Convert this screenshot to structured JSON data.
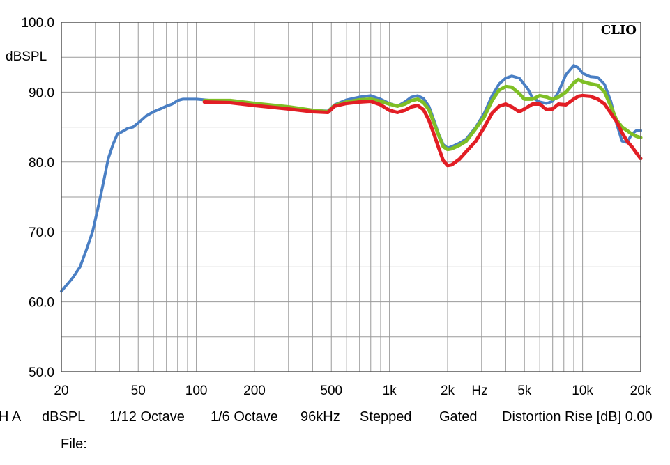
{
  "brand": "CLIO",
  "status_items": [
    "H A",
    "dBSPL",
    "1/12 Octave",
    "1/6 Octave",
    "96kHz",
    "Stepped",
    "Gated",
    "Distortion Rise [dB] 0.00"
  ],
  "file_label": "File:",
  "chart_data": {
    "type": "line",
    "title": "",
    "xlabel": "Hz",
    "ylabel": "dBSPL",
    "x_scale": "log",
    "xlim": [
      20,
      20000
    ],
    "ylim": [
      50,
      100
    ],
    "grid": true,
    "y_ticks": [
      {
        "value": 100,
        "label": "100.0"
      },
      {
        "value": 90,
        "label": "90.0"
      },
      {
        "value": 80,
        "label": "80.0"
      },
      {
        "value": 70,
        "label": "70.0"
      },
      {
        "value": 60,
        "label": "60.0"
      },
      {
        "value": 50,
        "label": "50.0"
      }
    ],
    "x_ticks": [
      {
        "value": 20,
        "label": "20"
      },
      {
        "value": 50,
        "label": "50"
      },
      {
        "value": 100,
        "label": "100"
      },
      {
        "value": 200,
        "label": "200"
      },
      {
        "value": 500,
        "label": "500"
      },
      {
        "value": 1000,
        "label": "1k"
      },
      {
        "value": 2000,
        "label": "2k"
      },
      {
        "value": 5000,
        "label": "5k"
      },
      {
        "value": 10000,
        "label": "10k"
      },
      {
        "value": 20000,
        "label": "20k"
      }
    ],
    "series": [
      {
        "color": "#4a7fc4",
        "width": 4,
        "points": [
          [
            20,
            61.5
          ],
          [
            23,
            63.5
          ],
          [
            25,
            65
          ],
          [
            27,
            67.5
          ],
          [
            29,
            70
          ],
          [
            31,
            73.5
          ],
          [
            33,
            77
          ],
          [
            35,
            80.5
          ],
          [
            37,
            82.5
          ],
          [
            39,
            84
          ],
          [
            41,
            84.3
          ],
          [
            44,
            84.8
          ],
          [
            47,
            85
          ],
          [
            50,
            85.6
          ],
          [
            55,
            86.6
          ],
          [
            60,
            87.2
          ],
          [
            65,
            87.6
          ],
          [
            70,
            88
          ],
          [
            75,
            88.3
          ],
          [
            80,
            88.8
          ],
          [
            85,
            89
          ],
          [
            90,
            89
          ],
          [
            100,
            89
          ],
          [
            110,
            88.9
          ],
          [
            120,
            88.8
          ],
          [
            150,
            88.6
          ],
          [
            200,
            88.2
          ],
          [
            300,
            87.8
          ],
          [
            400,
            87.4
          ],
          [
            480,
            87.3
          ],
          [
            520,
            88.2
          ],
          [
            600,
            88.9
          ],
          [
            700,
            89.3
          ],
          [
            800,
            89.5
          ],
          [
            900,
            89
          ],
          [
            1000,
            88.4
          ],
          [
            1100,
            88
          ],
          [
            1200,
            88.6
          ],
          [
            1300,
            89.3
          ],
          [
            1400,
            89.5
          ],
          [
            1500,
            89.1
          ],
          [
            1600,
            88
          ],
          [
            1700,
            86
          ],
          [
            1800,
            84
          ],
          [
            1900,
            82.5
          ],
          [
            2000,
            82
          ],
          [
            2100,
            82.2
          ],
          [
            2300,
            82.7
          ],
          [
            2500,
            83.3
          ],
          [
            2800,
            85
          ],
          [
            3100,
            87
          ],
          [
            3400,
            89.5
          ],
          [
            3700,
            91.2
          ],
          [
            4000,
            92
          ],
          [
            4300,
            92.3
          ],
          [
            4700,
            92
          ],
          [
            5200,
            90.5
          ],
          [
            5500,
            89.2
          ],
          [
            6000,
            88.6
          ],
          [
            6500,
            88.4
          ],
          [
            7000,
            88.7
          ],
          [
            7500,
            90
          ],
          [
            8200,
            92.5
          ],
          [
            9000,
            93.8
          ],
          [
            9500,
            93.5
          ],
          [
            10000,
            92.7
          ],
          [
            11000,
            92.2
          ],
          [
            12000,
            92.1
          ],
          [
            13000,
            91.1
          ],
          [
            14000,
            88.7
          ],
          [
            15000,
            85.5
          ],
          [
            16000,
            83
          ],
          [
            17000,
            82.8
          ],
          [
            18000,
            84
          ],
          [
            19000,
            84.5
          ],
          [
            20000,
            84.5
          ]
        ]
      },
      {
        "color": "#7fbf26",
        "width": 5,
        "points": [
          [
            110,
            88.8
          ],
          [
            150,
            88.8
          ],
          [
            200,
            88.4
          ],
          [
            300,
            87.9
          ],
          [
            400,
            87.4
          ],
          [
            480,
            87.2
          ],
          [
            520,
            88.1
          ],
          [
            600,
            88.6
          ],
          [
            700,
            88.9
          ],
          [
            800,
            89
          ],
          [
            900,
            88.7
          ],
          [
            1000,
            88.3
          ],
          [
            1100,
            88
          ],
          [
            1200,
            88.3
          ],
          [
            1300,
            88.8
          ],
          [
            1400,
            89
          ],
          [
            1500,
            88.5
          ],
          [
            1600,
            87.5
          ],
          [
            1700,
            85.6
          ],
          [
            1800,
            83.8
          ],
          [
            1900,
            82.2
          ],
          [
            2000,
            81.8
          ],
          [
            2100,
            81.9
          ],
          [
            2300,
            82.4
          ],
          [
            2500,
            83
          ],
          [
            2800,
            84.8
          ],
          [
            3100,
            86.5
          ],
          [
            3400,
            88.8
          ],
          [
            3700,
            90.3
          ],
          [
            4000,
            90.8
          ],
          [
            4300,
            90.7
          ],
          [
            4700,
            89.8
          ],
          [
            5000,
            89
          ],
          [
            5500,
            89
          ],
          [
            6000,
            89.5
          ],
          [
            6500,
            89.3
          ],
          [
            7000,
            89
          ],
          [
            7500,
            89.3
          ],
          [
            8200,
            90
          ],
          [
            9000,
            91.3
          ],
          [
            9500,
            91.8
          ],
          [
            10000,
            91.5
          ],
          [
            11000,
            91.2
          ],
          [
            12000,
            91
          ],
          [
            13000,
            90
          ],
          [
            14000,
            88
          ],
          [
            15000,
            86
          ],
          [
            16000,
            85
          ],
          [
            17000,
            84.5
          ],
          [
            18000,
            84
          ],
          [
            19000,
            83.7
          ],
          [
            20000,
            83.5
          ]
        ]
      },
      {
        "color": "#e21e25",
        "width": 5,
        "points": [
          [
            110,
            88.6
          ],
          [
            150,
            88.5
          ],
          [
            200,
            88.1
          ],
          [
            300,
            87.6
          ],
          [
            400,
            87.2
          ],
          [
            480,
            87.1
          ],
          [
            520,
            88
          ],
          [
            600,
            88.4
          ],
          [
            700,
            88.6
          ],
          [
            800,
            88.7
          ],
          [
            900,
            88.2
          ],
          [
            1000,
            87.4
          ],
          [
            1100,
            87.1
          ],
          [
            1200,
            87.4
          ],
          [
            1300,
            87.9
          ],
          [
            1400,
            88.1
          ],
          [
            1500,
            87.5
          ],
          [
            1600,
            86
          ],
          [
            1700,
            84
          ],
          [
            1800,
            82
          ],
          [
            1900,
            80.2
          ],
          [
            2000,
            79.5
          ],
          [
            2100,
            79.6
          ],
          [
            2300,
            80.4
          ],
          [
            2500,
            81.5
          ],
          [
            2800,
            83
          ],
          [
            3100,
            85
          ],
          [
            3400,
            87
          ],
          [
            3700,
            88
          ],
          [
            4000,
            88.3
          ],
          [
            4300,
            87.9
          ],
          [
            4700,
            87.2
          ],
          [
            5000,
            87.6
          ],
          [
            5500,
            88.3
          ],
          [
            6000,
            88.3
          ],
          [
            6500,
            87.5
          ],
          [
            7000,
            87.6
          ],
          [
            7500,
            88.3
          ],
          [
            8200,
            88.2
          ],
          [
            9000,
            89
          ],
          [
            9500,
            89.4
          ],
          [
            10000,
            89.5
          ],
          [
            11000,
            89.4
          ],
          [
            12000,
            89
          ],
          [
            13000,
            88.3
          ],
          [
            14000,
            87
          ],
          [
            15000,
            85.8
          ],
          [
            16000,
            84.2
          ],
          [
            17000,
            83
          ],
          [
            18000,
            82.2
          ],
          [
            19000,
            81.3
          ],
          [
            20000,
            80.5
          ]
        ]
      }
    ]
  }
}
